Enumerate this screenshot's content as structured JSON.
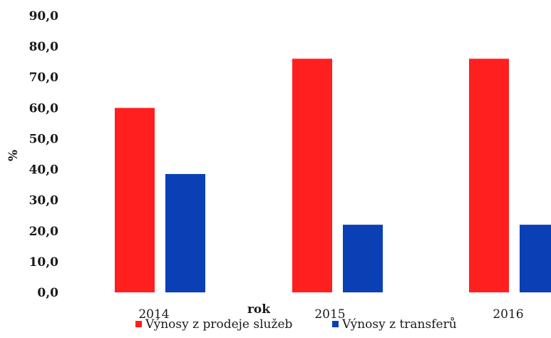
{
  "chart_data": {
    "type": "bar",
    "categories": [
      "2014",
      "2015",
      "2016"
    ],
    "series": [
      {
        "name": "Výnosy z prodeje služeb",
        "color": "#ff1f1f",
        "values": [
          60.0,
          76.0,
          76.0
        ]
      },
      {
        "name": "Výnosy z transferů",
        "color": "#0b3fb5",
        "values": [
          38.5,
          22.0,
          22.0
        ]
      }
    ],
    "ylim": [
      0,
      90
    ],
    "yticks": [
      "0,0",
      "10,0",
      "20,0",
      "30,0",
      "40,0",
      "50,0",
      "60,0",
      "70,0",
      "80,0",
      "90,0"
    ],
    "xlabel": "rok",
    "ylabel": "%",
    "grid": false,
    "legend_position": "bottom"
  }
}
